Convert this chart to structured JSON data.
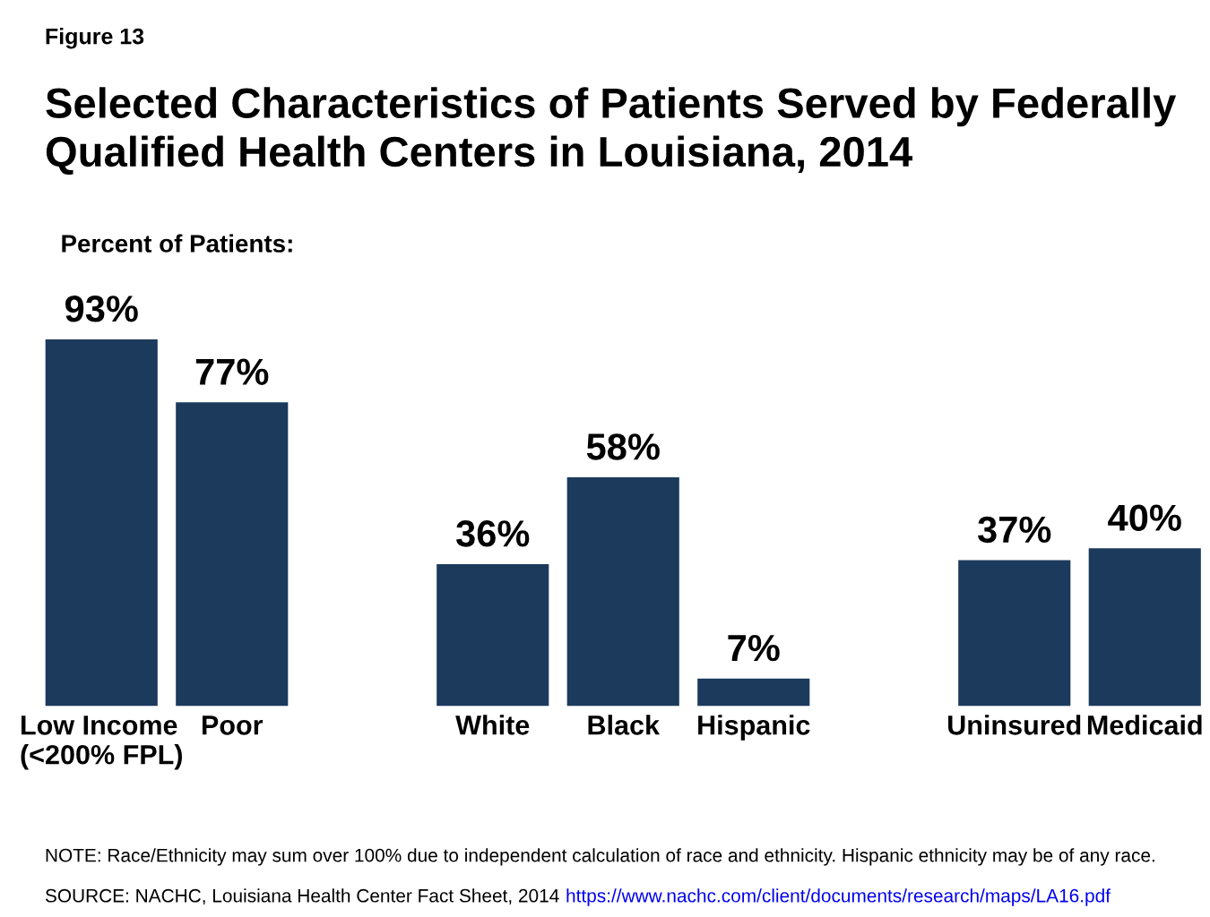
{
  "chart_data": {
    "type": "bar",
    "subtitle": "Figure 13",
    "title": "Selected Characteristics of Patients Served by Federally\nQualified Health Centers in Louisiana, 2014",
    "ylabel": "Percent of Patients:",
    "categories": [
      "Low Income\n(<200% FPL)",
      "Poor",
      null,
      "White",
      "Black",
      "Hispanic",
      null,
      "Uninsured",
      "Medicaid"
    ],
    "values": [
      93,
      77,
      null,
      36,
      58,
      7,
      null,
      37,
      40
    ],
    "value_labels": [
      "93%",
      "77%",
      null,
      "36%",
      "58%",
      "7%",
      null,
      "37%",
      "40%"
    ],
    "color": "#1b3a5c",
    "grid": false,
    "legend": false,
    "tick_labels": "x",
    "annotations": [
      "NOTE: Race/Ethnicity may sum over 100% due to independent calculation of race and ethnicity. Hispanic ethnicity may be of any race.",
      "SOURCE: NACHC, Louisiana Health Center Fact Sheet, 2014",
      "https://www.nachc.com/client/documents/research/maps/LA16.pdf"
    ]
  }
}
